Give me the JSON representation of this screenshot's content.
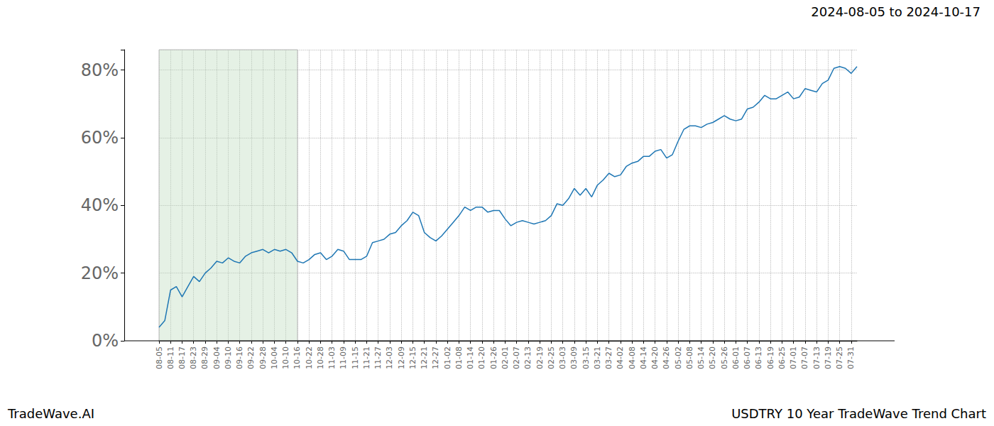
{
  "chart_data": {
    "type": "line",
    "title": "USDTRY 10 Year TradeWave Trend Chart",
    "subtitle": "2024-08-05 to 2024-10-17",
    "source": "TradeWave.AI",
    "categories": [
      "08-05",
      null,
      "08-11",
      null,
      "08-17",
      null,
      "08-23",
      null,
      "08-29",
      null,
      "09-04",
      null,
      "09-10",
      null,
      "09-16",
      null,
      "09-22",
      null,
      "09-28",
      null,
      "10-04",
      null,
      "10-10",
      null,
      "10-16",
      null,
      "10-22",
      null,
      "10-28",
      null,
      "11-03",
      null,
      "11-09",
      null,
      "11-15",
      null,
      "11-21",
      null,
      "11-27",
      null,
      "12-03",
      null,
      "12-09",
      null,
      "12-15",
      null,
      "12-21",
      null,
      "12-27",
      null,
      "01-02",
      null,
      "01-08",
      null,
      "01-14",
      null,
      "01-20",
      null,
      "01-26",
      null,
      "02-01",
      null,
      "02-07",
      null,
      "02-13",
      null,
      "02-19",
      null,
      "02-25",
      null,
      "03-03",
      null,
      "03-09",
      null,
      "03-15",
      null,
      "03-21",
      null,
      "03-27",
      null,
      "04-02",
      null,
      "04-08",
      null,
      "04-14",
      null,
      "04-20",
      null,
      "04-26",
      null,
      "05-02",
      null,
      "05-08",
      null,
      "05-14",
      null,
      "05-20",
      null,
      "05-26",
      null,
      "06-01",
      null,
      "06-07",
      null,
      "06-13",
      null,
      "06-19",
      null,
      "06-25",
      null,
      "07-01",
      null,
      "07-07",
      null,
      "07-13",
      null,
      "07-19",
      null,
      "07-25",
      null,
      "07-31",
      null
    ],
    "values": [
      4,
      6,
      15,
      16,
      13,
      16,
      19,
      17.5,
      20,
      21.5,
      23.5,
      23,
      24.5,
      23.5,
      23,
      25,
      26,
      26.5,
      27,
      26,
      27,
      26.5,
      27,
      26,
      23.5,
      23,
      24,
      25.5,
      26,
      24,
      25,
      27,
      26.5,
      24,
      24,
      24,
      25,
      29,
      29.5,
      30,
      31.5,
      32,
      34,
      35.5,
      38,
      37,
      32,
      30.5,
      29.5,
      31,
      33,
      35,
      37,
      39.5,
      38.5,
      39.5,
      39.5,
      38,
      38.5,
      38.5,
      36,
      34,
      35,
      35.5,
      35,
      34.5,
      35,
      35.5,
      37,
      40.5,
      40,
      42,
      45,
      43,
      45,
      42.5,
      46,
      47.5,
      49.5,
      48.5,
      49,
      51.5,
      52.5,
      53,
      54.5,
      54.5,
      56,
      56.5,
      54,
      55,
      59,
      62.5,
      63.5,
      63.5,
      63,
      64,
      64.5,
      65.5,
      66.5,
      65.5,
      65,
      65.5,
      68.5,
      69,
      70.5,
      72.5,
      71.5,
      71.5,
      72.5,
      73.5,
      71.5,
      72,
      74.5,
      74,
      73.5,
      76,
      77,
      80.5,
      81,
      80.5,
      79,
      81
    ],
    "color": "#1f77b4",
    "shaded_range": [
      "08-05",
      "10-16"
    ],
    "ylim": [
      0,
      86
    ],
    "yticks": [
      {
        "value": 0,
        "label": "0%"
      },
      {
        "value": 20,
        "label": "20%"
      },
      {
        "value": 40,
        "label": "40%"
      },
      {
        "value": 60,
        "label": "60%"
      },
      {
        "value": 80,
        "label": "80%"
      }
    ],
    "grid": true
  }
}
